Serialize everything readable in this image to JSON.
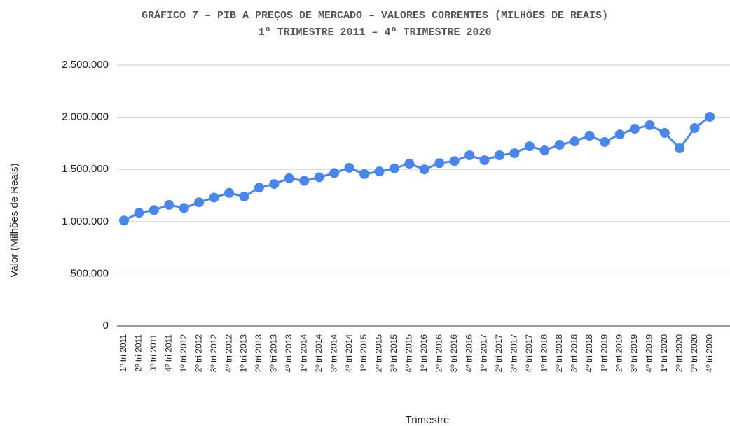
{
  "chart_data": {
    "type": "line",
    "title": "GRÁFICO 7 – PIB A PREÇOS DE MERCADO – VALORES CORRENTES (MILHÕES DE REAIS)",
    "subtitle": "1º TRIMESTRE 2011 – 4º TRIMESTRE 2020",
    "x_label": "Trimestre",
    "y_label": "Valor (Milhões de Reais)",
    "categories": [
      "1º tri 2011",
      "2º tri 2011",
      "3º tri 2011",
      "4º tri 2011",
      "1º tri 2012",
      "2º tri 2012",
      "3º tri 2012",
      "4º tri 2012",
      "1º tri 2013",
      "2º tri 2013",
      "3º tri 2013",
      "4º tri 2013",
      "1º tri 2014",
      "2º tri 2014",
      "3º tri 2014",
      "4º tri 2014",
      "1º tri 2015",
      "2º tri 2015",
      "3º tri 2015",
      "4º tri 2015",
      "1º tri 2016",
      "2º tri 2016",
      "3º tri 2016",
      "4º tri 2016",
      "1º tri 2017",
      "2º tri 2017",
      "3º tri 2017",
      "4º tri 2017",
      "1º tri 2018",
      "2º tri 2018",
      "3º tri 2018",
      "4º tri 2018",
      "1º tri 2019",
      "2º tri 2019",
      "3º tri 2019",
      "4º tri 2019",
      "1º tri 2020",
      "2º tri 2020",
      "3º tri 2020",
      "4º tri 2020"
    ],
    "series": [
      {
        "name": "Valor",
        "color": "#4a86e8",
        "values": [
          1010000,
          1085000,
          1110000,
          1160000,
          1130000,
          1185000,
          1230000,
          1275000,
          1240000,
          1325000,
          1360000,
          1415000,
          1390000,
          1425000,
          1465000,
          1515000,
          1455000,
          1480000,
          1510000,
          1555000,
          1500000,
          1560000,
          1580000,
          1635000,
          1588000,
          1635000,
          1655000,
          1722000,
          1682000,
          1736000,
          1769000,
          1823000,
          1763000,
          1836000,
          1890000,
          1924000,
          1850000,
          1702000,
          1897000,
          2004000
        ]
      }
    ],
    "ylim": [
      0,
      2500000
    ],
    "yticks": [
      0,
      {
        "value": 500000,
        "label": "500.000"
      },
      {
        "value": 1000000,
        "label": "1.000.000"
      },
      {
        "value": 1500000,
        "label": "1.500.000"
      },
      {
        "value": 2000000,
        "label": "2.000.000"
      },
      {
        "value": 2500000,
        "label": "2.500.000"
      }
    ],
    "grid": true
  }
}
